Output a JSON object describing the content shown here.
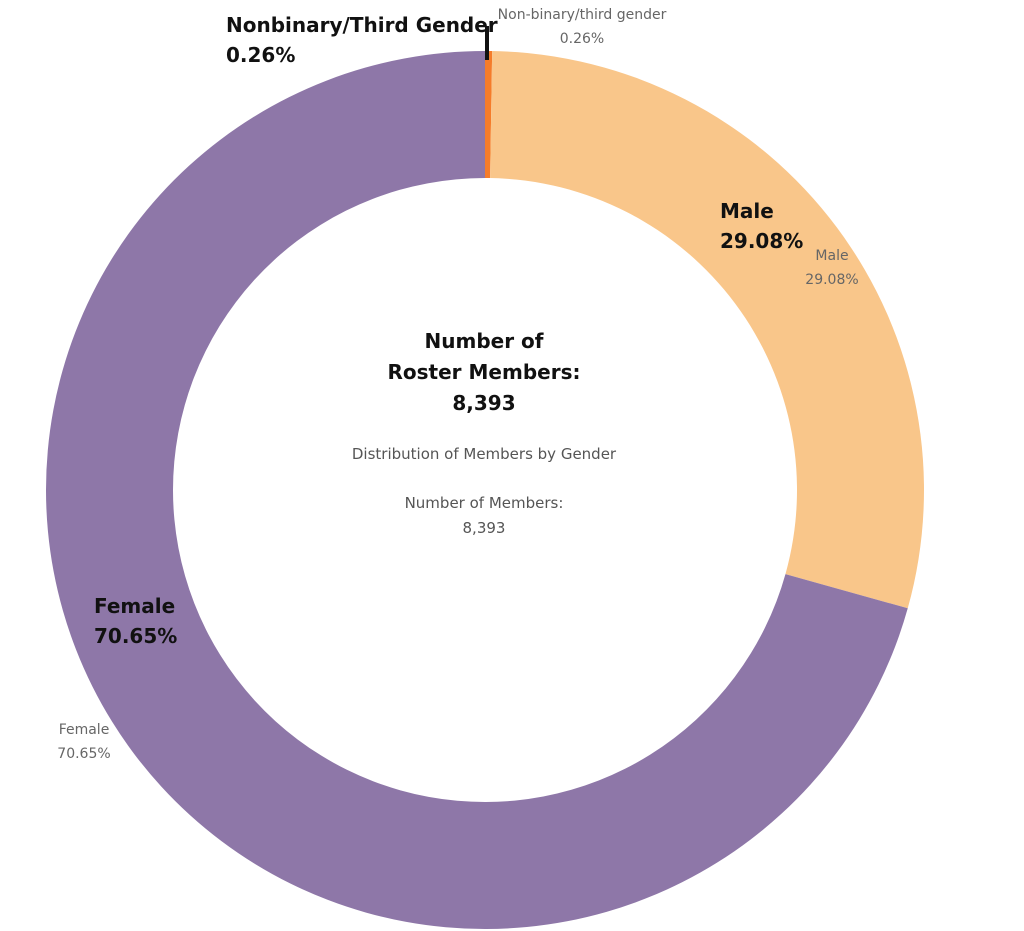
{
  "chart_data": {
    "type": "pie",
    "title": "Distribution of Members by Gender",
    "total_label_heading": "Number of\nRoster Members:",
    "total_label_sub": "Number of Members:",
    "total_value": "8,393",
    "slices": [
      {
        "name": "Nonbinary/Third Gender",
        "alt_name": "Non-binary/third gender",
        "value": 0.26,
        "label": "0.26%",
        "color": "#f57c2a"
      },
      {
        "name": "Male",
        "alt_name": "Male",
        "value": 29.08,
        "label": "29.08%",
        "color": "#f9c68a"
      },
      {
        "name": "Female",
        "alt_name": "Female",
        "value": 70.65,
        "label": "70.65%",
        "color": "#8e77a8"
      }
    ]
  }
}
